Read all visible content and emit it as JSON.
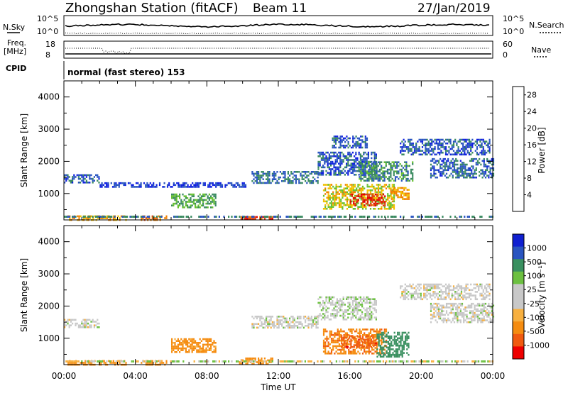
{
  "header": {
    "station": "Zhongshan Station (fitACF)",
    "beam": "Beam 11",
    "date": "27/Jan/2019"
  },
  "top_panels": {
    "nsky_label": "N.Sky",
    "nsky_top": "10^5",
    "nsky_bottom": "10^0",
    "nsearch_label": "N.Search",
    "nsearch_top": "10^5",
    "nsearch_bottom": "10^0",
    "freq_label": "Freq.",
    "freq_unit": "[MHz]",
    "freq_top": "18",
    "freq_bottom": "8",
    "nave_label": "Nave",
    "nave_top": "60",
    "nave_bottom": "0",
    "cpid_label": "CPID",
    "cpid_value": "normal (fast stereo) 153"
  },
  "colors": {
    "power_scale": [
      "#1020e0",
      "#2a55c0",
      "#3a8a60",
      "#66c030",
      "#f0c000",
      "#f08000",
      "#e04010",
      "#e00000"
    ],
    "velocity_scale": [
      "#ee0000",
      "#f05a10",
      "#f58c10",
      "#f7b040",
      "#c8c8c8",
      "#c8c8c8",
      "#6cc040",
      "#3a9060",
      "#2a55c0",
      "#1020d0"
    ]
  },
  "chart_data": [
    {
      "type": "heatmap",
      "title": "",
      "xlabel": "",
      "ylabel": "Slant Range [km]",
      "x_ticks": [],
      "y_ticks": [
        "1000",
        "2000",
        "3000",
        "4000"
      ],
      "xlim_hours": [
        0,
        24
      ],
      "ylim_km": [
        180,
        4500
      ],
      "colorbar": {
        "label": "Power [dB]",
        "ticks": [
          "4",
          "8",
          "12",
          "16",
          "20",
          "24",
          "28"
        ],
        "range": [
          0,
          30
        ]
      },
      "regions": [
        {
          "t0": 0.0,
          "t1": 2.0,
          "r0": 1350,
          "r1": 1600,
          "value": 6
        },
        {
          "t0": 2.0,
          "t1": 10.2,
          "r0": 1200,
          "r1": 1350,
          "value": 4
        },
        {
          "t0": 0.2,
          "t1": 3.5,
          "r0": 200,
          "r1": 320,
          "value": 20
        },
        {
          "t0": 4.3,
          "t1": 5.7,
          "r0": 200,
          "r1": 320,
          "value": 22
        },
        {
          "t0": 9.8,
          "t1": 11.7,
          "r0": 200,
          "r1": 300,
          "value": 27
        },
        {
          "t0": 6.0,
          "t1": 8.5,
          "r0": 550,
          "r1": 1000,
          "value": 12
        },
        {
          "t0": 10.5,
          "t1": 14.2,
          "r0": 1300,
          "r1": 1700,
          "value": 8
        },
        {
          "t0": 14.2,
          "t1": 17.5,
          "r0": 1600,
          "r1": 2300,
          "value": 6
        },
        {
          "t0": 16.5,
          "t1": 19.5,
          "r0": 1400,
          "r1": 2000,
          "value": 10
        },
        {
          "t0": 14.5,
          "t1": 18.5,
          "r0": 500,
          "r1": 1300,
          "value": 17
        },
        {
          "t0": 16.0,
          "t1": 18.0,
          "r0": 600,
          "r1": 1000,
          "value": 28
        },
        {
          "t0": 18.3,
          "t1": 19.3,
          "r0": 800,
          "r1": 1200,
          "value": 20
        },
        {
          "t0": 18.8,
          "t1": 23.8,
          "r0": 2200,
          "r1": 2700,
          "value": 6
        },
        {
          "t0": 20.5,
          "t1": 24.0,
          "r0": 1500,
          "r1": 2100,
          "value": 7
        },
        {
          "t0": 15.0,
          "t1": 17.0,
          "r0": 2400,
          "r1": 2800,
          "value": 6
        }
      ]
    },
    {
      "type": "heatmap",
      "title": "",
      "xlabel": "Time UT",
      "ylabel": "Slant Range [km]",
      "x_ticks": [
        "00:00",
        "04:00",
        "08:00",
        "12:00",
        "16:00",
        "20:00",
        "00:00"
      ],
      "y_ticks": [
        "1000",
        "2000",
        "3000",
        "4000"
      ],
      "xlim_hours": [
        0,
        24
      ],
      "ylim_km": [
        180,
        4500
      ],
      "colorbar": {
        "label": "Velocity [m s⁻¹]",
        "ticks": [
          "1000",
          "500",
          "100",
          "25",
          "-25",
          "-100",
          "-500",
          "-1000"
        ]
      },
      "regions": [
        {
          "t0": 0.0,
          "t1": 2.0,
          "r0": 1350,
          "r1": 1600,
          "value": 0
        },
        {
          "t0": 0.2,
          "t1": 3.5,
          "r0": 200,
          "r1": 320,
          "value": -200
        },
        {
          "t0": 4.3,
          "t1": 5.7,
          "r0": 200,
          "r1": 320,
          "value": -300
        },
        {
          "t0": 6.0,
          "t1": 8.5,
          "r0": 550,
          "r1": 1000,
          "value": -150
        },
        {
          "t0": 9.8,
          "t1": 11.7,
          "r0": 200,
          "r1": 400,
          "value": -200
        },
        {
          "t0": 10.5,
          "t1": 14.2,
          "r0": 1300,
          "r1": 1700,
          "value": 0
        },
        {
          "t0": 14.2,
          "t1": 17.5,
          "r0": 1600,
          "r1": 2300,
          "value": 10
        },
        {
          "t0": 14.5,
          "t1": 18.0,
          "r0": 500,
          "r1": 1300,
          "value": -400
        },
        {
          "t0": 15.5,
          "t1": 17.5,
          "r0": 700,
          "r1": 1100,
          "value": -700
        },
        {
          "t0": 17.5,
          "t1": 19.3,
          "r0": 400,
          "r1": 1200,
          "value": 300
        },
        {
          "t0": 18.8,
          "t1": 23.8,
          "r0": 2200,
          "r1": 2700,
          "value": 0
        },
        {
          "t0": 20.5,
          "t1": 24.0,
          "r0": 1500,
          "r1": 2100,
          "value": 0
        }
      ]
    }
  ],
  "labels": {
    "power_cb_label": "Power [dB]",
    "velocity_cb_label": "Velocity [m s⁻¹]"
  }
}
